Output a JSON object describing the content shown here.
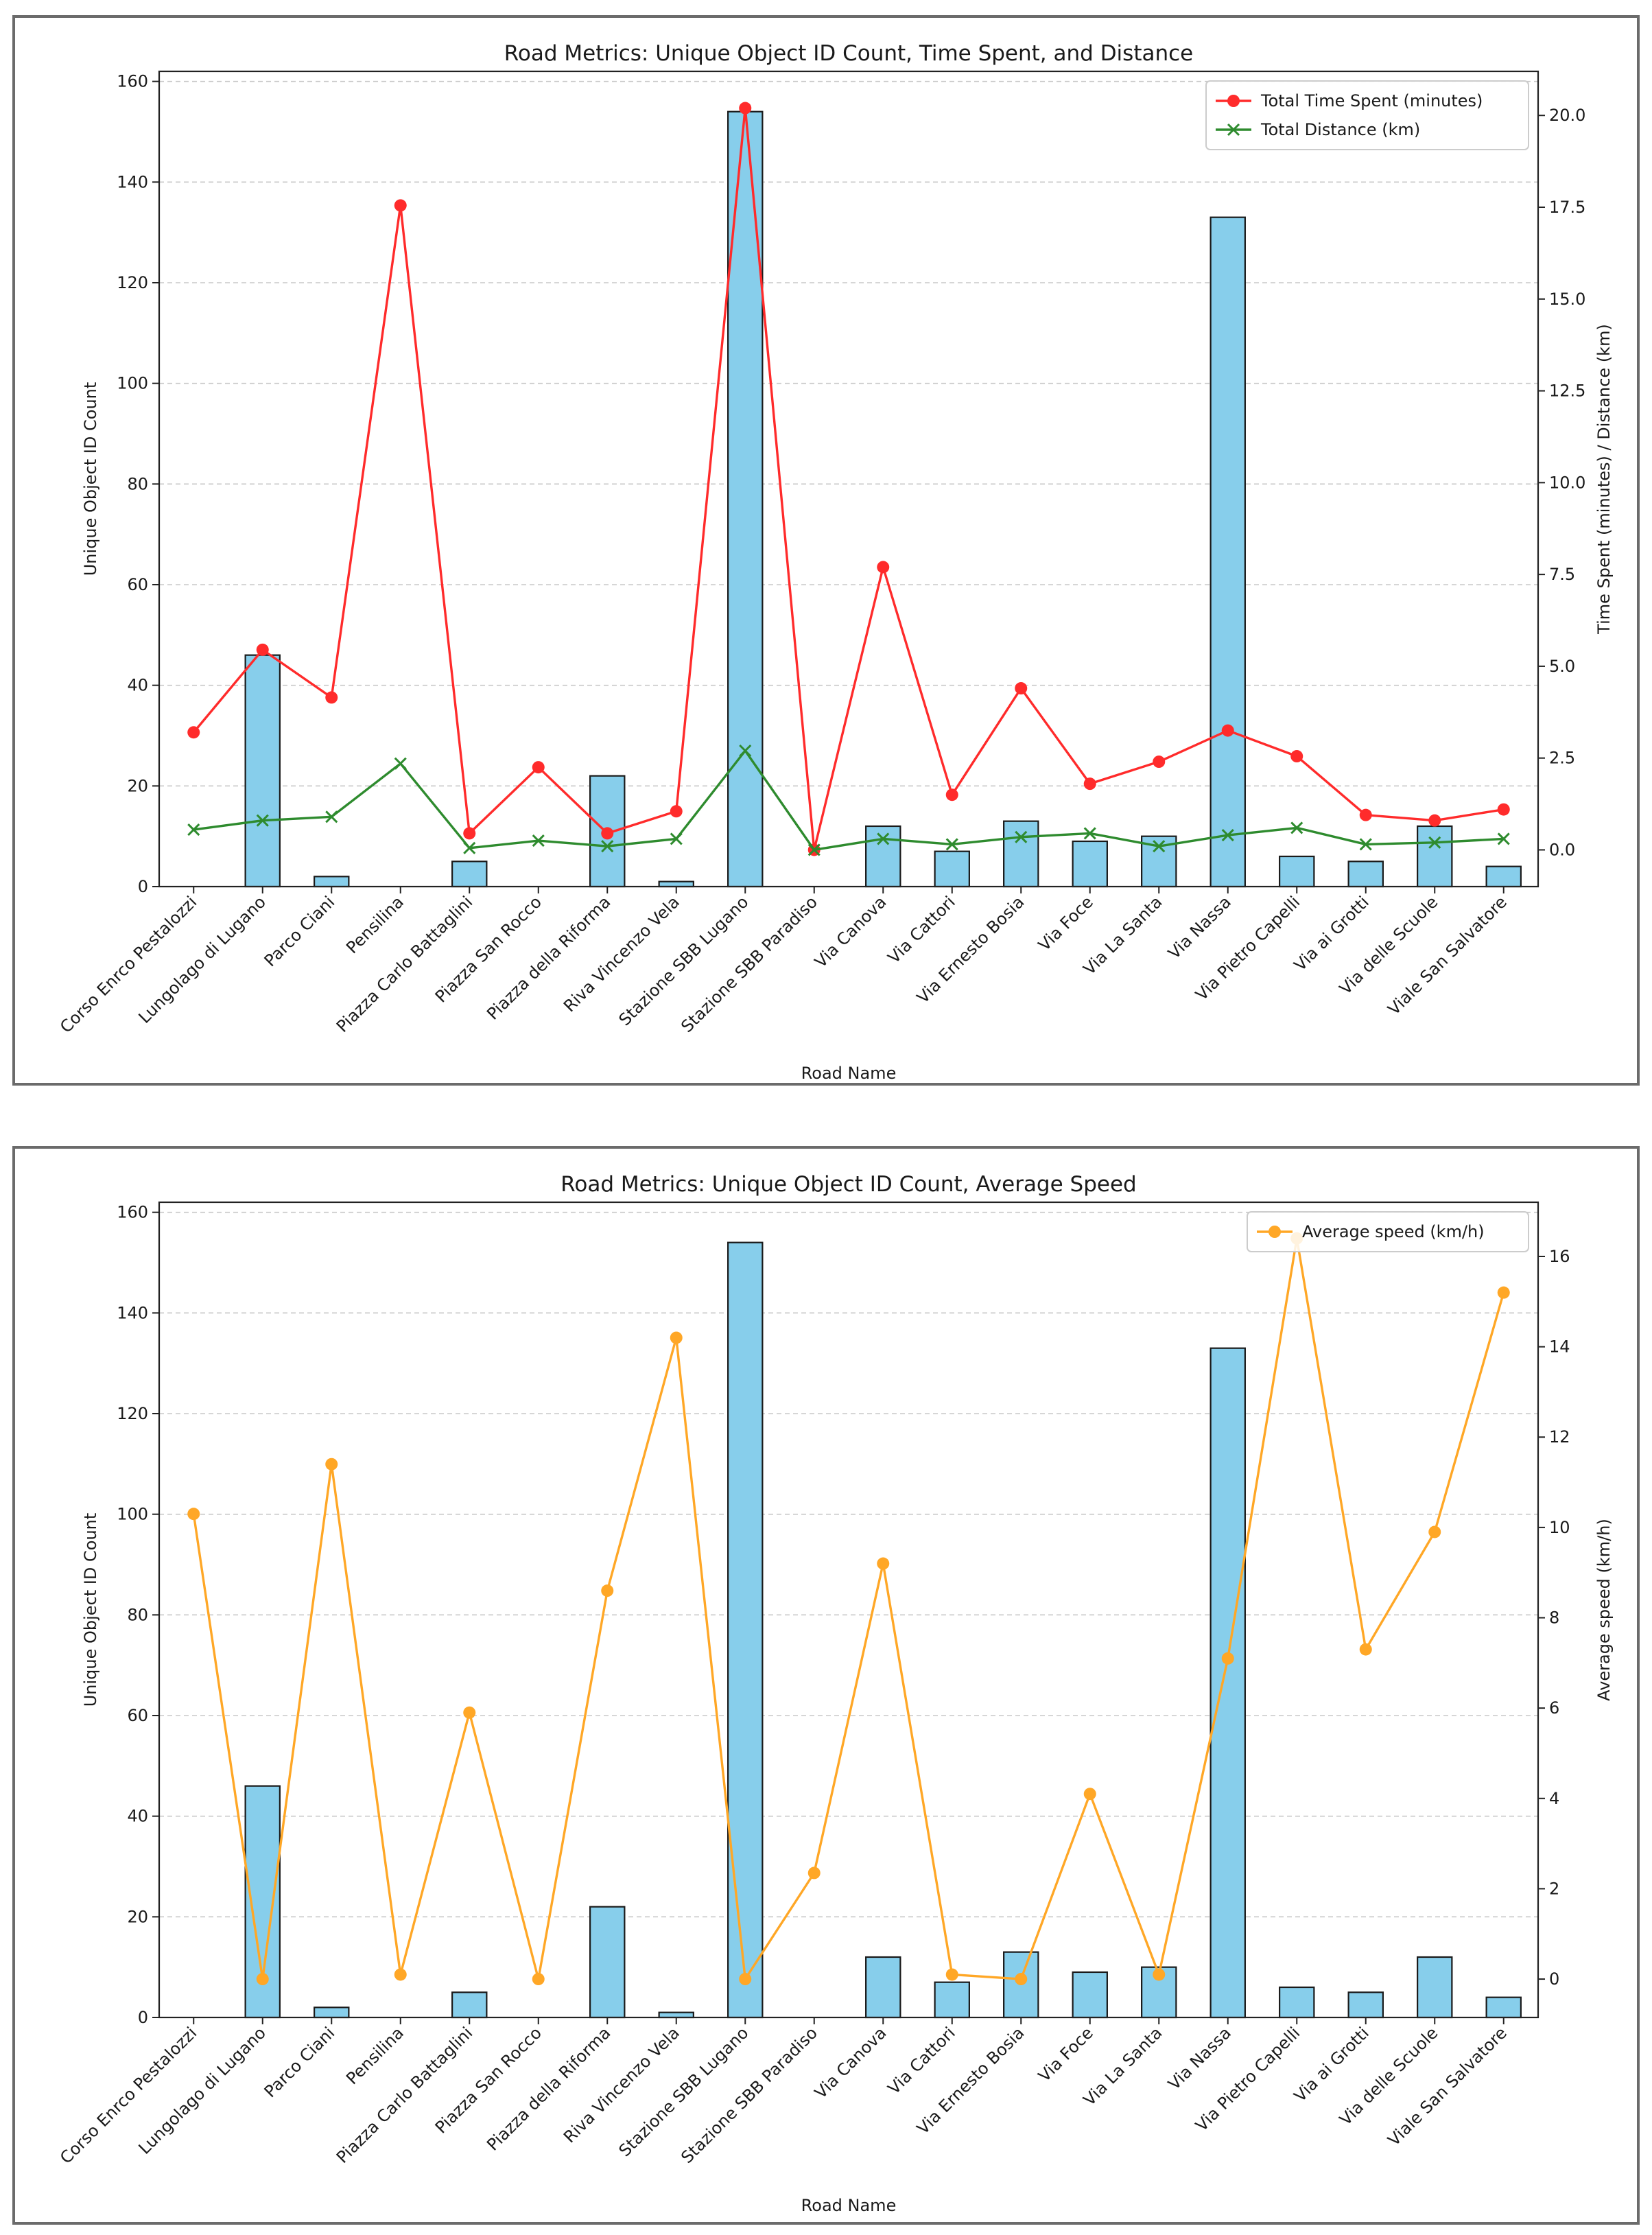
{
  "chart_data": [
    {
      "type": "bar",
      "title": "Road Metrics: Unique Object ID Count, Time Spent, and Distance",
      "xlabel": "Road Name",
      "ylabel": "Unique Object ID Count",
      "y2label": "Time Spent (minutes) / Distance (km)",
      "ylim": [
        0,
        162
      ],
      "y2lim": [
        -1,
        21.2
      ],
      "yticks": [
        0,
        20,
        40,
        60,
        80,
        100,
        120,
        140,
        160
      ],
      "y2ticks": [
        "0.0",
        "2.5",
        "5.0",
        "7.5",
        "10.0",
        "12.5",
        "15.0",
        "17.5",
        "20.0"
      ],
      "grid": true,
      "legend_position": "top-right",
      "categories": [
        "Corso Enrco Pestalozzi",
        "Lungolago di Lugano",
        "Parco Ciani",
        "Pensilina",
        "Piazza Carlo Battaglini",
        "Piazza San Rocco",
        "Piazza della Riforma",
        "Riva Vincenzo Vela",
        "Stazione SBB Lugano",
        "Stazione SBB Paradiso",
        "Via Canova",
        "Via Cattori",
        "Via Ernesto Bosia",
        "Via Foce",
        "Via La Santa",
        "Via Nassa",
        "Via Pietro Capelli",
        "Via ai Grotti",
        "Via delle Scuole",
        "Viale San Salvatore"
      ],
      "bars": {
        "name": "Unique Object ID Count",
        "color": "#87ceeb",
        "values": [
          0,
          46,
          2,
          0,
          5,
          0,
          22,
          1,
          154,
          0,
          12,
          7,
          13,
          9,
          10,
          133,
          6,
          5,
          12,
          4
        ]
      },
      "series": [
        {
          "name": "Total Time Spent (minutes)",
          "color": "#ff2b2b",
          "marker": "circle",
          "values": [
            3.2,
            5.45,
            4.15,
            17.55,
            0.45,
            2.25,
            0.45,
            1.05,
            20.2,
            0.0,
            7.7,
            1.5,
            4.4,
            1.8,
            2.4,
            3.25,
            2.55,
            0.95,
            0.8,
            1.1
          ]
        },
        {
          "name": "Total Distance (km)",
          "color": "#2e8b2e",
          "marker": "x",
          "values": [
            0.55,
            0.8,
            0.9,
            2.35,
            0.05,
            0.25,
            0.1,
            0.3,
            2.7,
            0.0,
            0.3,
            0.15,
            0.35,
            0.45,
            0.1,
            0.4,
            0.6,
            0.15,
            0.2,
            0.3
          ]
        }
      ]
    },
    {
      "type": "bar",
      "title": "Road Metrics: Unique Object ID Count, Average Speed",
      "xlabel": "Road Name",
      "ylabel": "Unique Object ID Count",
      "y2label": "Average speed (km/h)",
      "ylim": [
        0,
        162
      ],
      "y2lim": [
        -0.85,
        17.2
      ],
      "yticks": [
        0,
        20,
        40,
        60,
        80,
        100,
        120,
        140,
        160
      ],
      "y2ticks": [
        "0",
        "2",
        "4",
        "6",
        "8",
        "10",
        "12",
        "14",
        "16"
      ],
      "grid": true,
      "legend_position": "top-right",
      "categories": [
        "Corso Enrco Pestalozzi",
        "Lungolago di Lugano",
        "Parco Ciani",
        "Pensilina",
        "Piazza Carlo Battaglini",
        "Piazza San Rocco",
        "Piazza della Riforma",
        "Riva Vincenzo Vela",
        "Stazione SBB Lugano",
        "Stazione SBB Paradiso",
        "Via Canova",
        "Via Cattori",
        "Via Ernesto Bosia",
        "Via Foce",
        "Via La Santa",
        "Via Nassa",
        "Via Pietro Capelli",
        "Via ai Grotti",
        "Via delle Scuole",
        "Viale San Salvatore"
      ],
      "bars": {
        "name": "Unique Object ID Count",
        "color": "#87ceeb",
        "values": [
          0,
          46,
          2,
          0,
          5,
          0,
          22,
          1,
          154,
          0,
          12,
          7,
          13,
          9,
          10,
          133,
          6,
          5,
          12,
          4
        ]
      },
      "series": [
        {
          "name": "Average speed (km/h)",
          "color": "#ffa726",
          "marker": "circle",
          "values": [
            10.3,
            0.0,
            11.4,
            0.1,
            5.9,
            0.0,
            8.6,
            14.2,
            0.0,
            2.35,
            9.2,
            0.1,
            0.0,
            4.1,
            0.1,
            7.1,
            16.4,
            7.3,
            9.9,
            15.2
          ]
        }
      ]
    }
  ]
}
